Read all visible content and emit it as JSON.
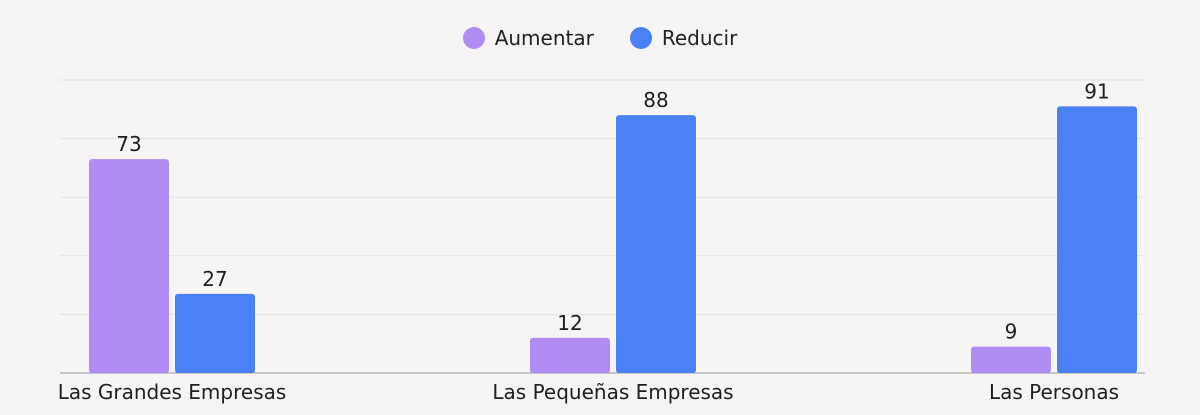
{
  "chart_data": {
    "type": "bar",
    "categories": [
      "Las Grandes Empresas",
      "Las Pequeñas Empresas",
      "Las Personas"
    ],
    "series": [
      {
        "name": "Aumentar",
        "values": [
          73,
          12,
          9
        ],
        "color": "#b18cf2"
      },
      {
        "name": "Reducir",
        "values": [
          27,
          88,
          91
        ],
        "color": "#4a80f5"
      }
    ],
    "ylim": [
      0,
      100
    ],
    "grid": true,
    "legend": "top-center",
    "colors": {
      "grid": "#e4e1e1",
      "axis": "#9a9a9a",
      "text": "#1f1f1f",
      "background": "#f6f4f4"
    }
  }
}
